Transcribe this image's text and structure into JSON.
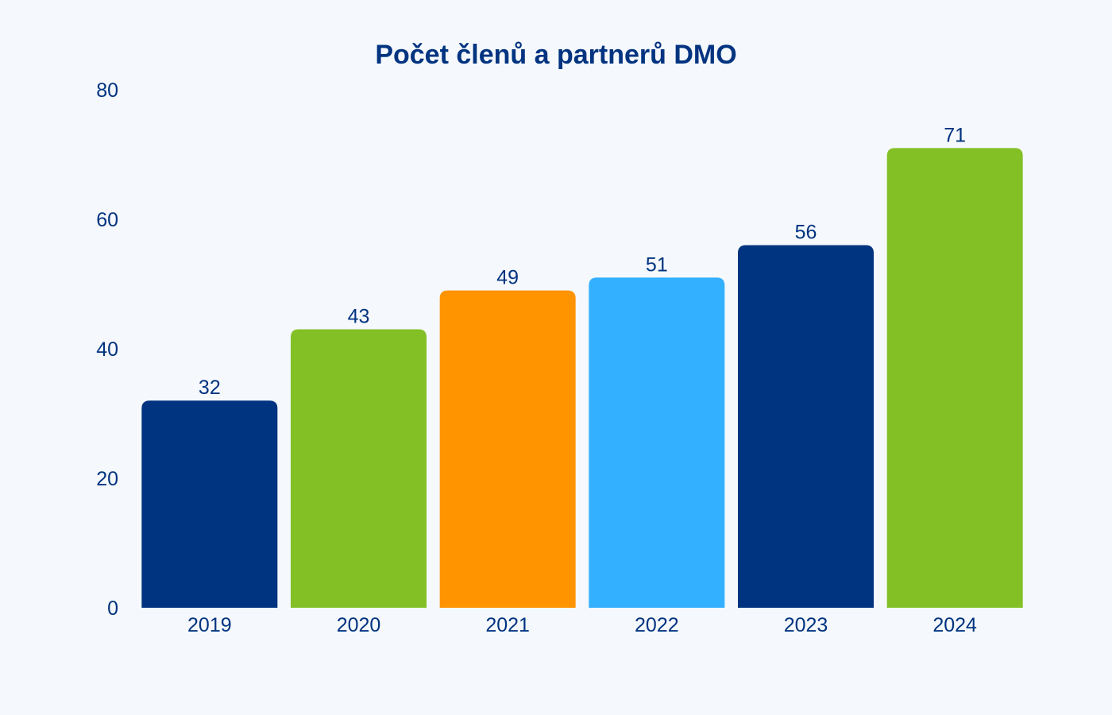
{
  "chart_data": {
    "type": "bar",
    "title": "Počet členů a partnerů DMO",
    "xlabel": "",
    "ylabel": "",
    "categories": [
      "2019",
      "2020",
      "2021",
      "2022",
      "2023",
      "2024"
    ],
    "values": [
      32,
      43,
      49,
      51,
      56,
      71
    ],
    "data_labels": [
      "32",
      "43",
      "49",
      "51",
      "56",
      "71"
    ],
    "bar_colors": [
      "#003380",
      "#83c026",
      "#ff9300",
      "#33b0ff",
      "#003380",
      "#83c026"
    ],
    "ylim": [
      0,
      80
    ],
    "yticks": [
      0,
      20,
      40,
      60,
      80
    ],
    "ytick_labels": [
      "0",
      "20",
      "40",
      "60",
      "80"
    ],
    "grid": false,
    "legend": "none",
    "text_color": "#003380",
    "background": "#f5f8fc"
  }
}
